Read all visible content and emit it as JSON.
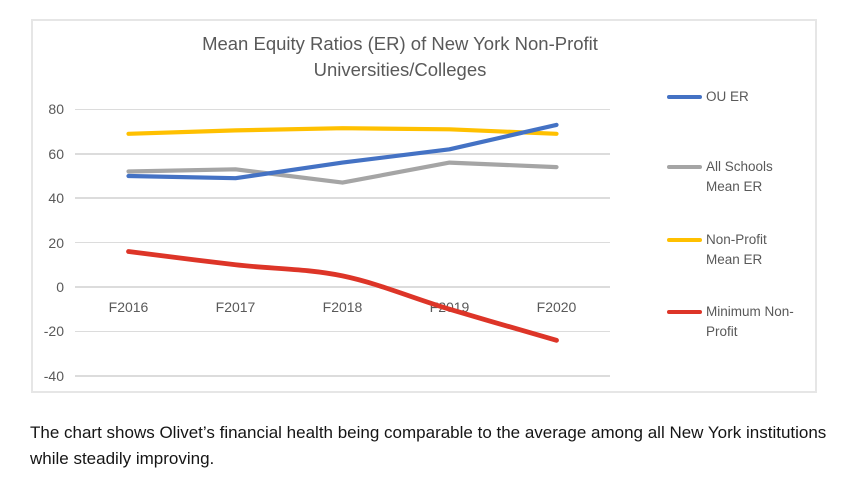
{
  "chart_data": {
    "type": "line",
    "title": "Mean Equity Ratios (ER) of New York Non-Profit Universities/Colleges",
    "title_lines": [
      "Mean Equity Ratios (ER) of New York Non-Profit",
      "Universities/Colleges"
    ],
    "categories": [
      "F2016",
      "F2017",
      "F2018",
      "F2019",
      "F2020"
    ],
    "series": [
      {
        "name": "OU ER",
        "legend_lines": [
          "OU ER"
        ],
        "color": "#4472C4",
        "values": [
          50,
          49,
          56,
          62,
          73
        ],
        "smooth": false
      },
      {
        "name": "All Schools Mean ER",
        "legend_lines": [
          "All Schools",
          "Mean ER"
        ],
        "color": "#A5A5A5",
        "values": [
          52,
          53,
          47,
          56,
          54
        ],
        "smooth": false
      },
      {
        "name": "Non-Profit Mean ER",
        "legend_lines": [
          "Non-Profit",
          "Mean ER"
        ],
        "color": "#FFC000",
        "values": [
          69,
          70.5,
          71.5,
          71,
          69
        ],
        "smooth": false
      },
      {
        "name": "Minimum Non-Profit",
        "legend_lines": [
          "Minimum Non-",
          "Profit"
        ],
        "color": "#DD3528",
        "values": [
          16,
          10,
          5,
          -10,
          -24
        ],
        "smooth": true
      }
    ],
    "xlabel": "",
    "ylabel": "",
    "ylim": [
      -40,
      80
    ],
    "yticks": [
      80,
      60,
      40,
      20,
      0,
      -20,
      -40
    ],
    "grid": true,
    "legend_position": "right"
  },
  "caption": "The chart shows Olivet’s financial health being comparable to the average among all New York institutions while steadily improving.",
  "colors": {
    "axis_text": "#595959",
    "grid": "#dcdcdc",
    "chart_border": "#e6e6e6",
    "title": "#595959",
    "caption": "#151515"
  }
}
